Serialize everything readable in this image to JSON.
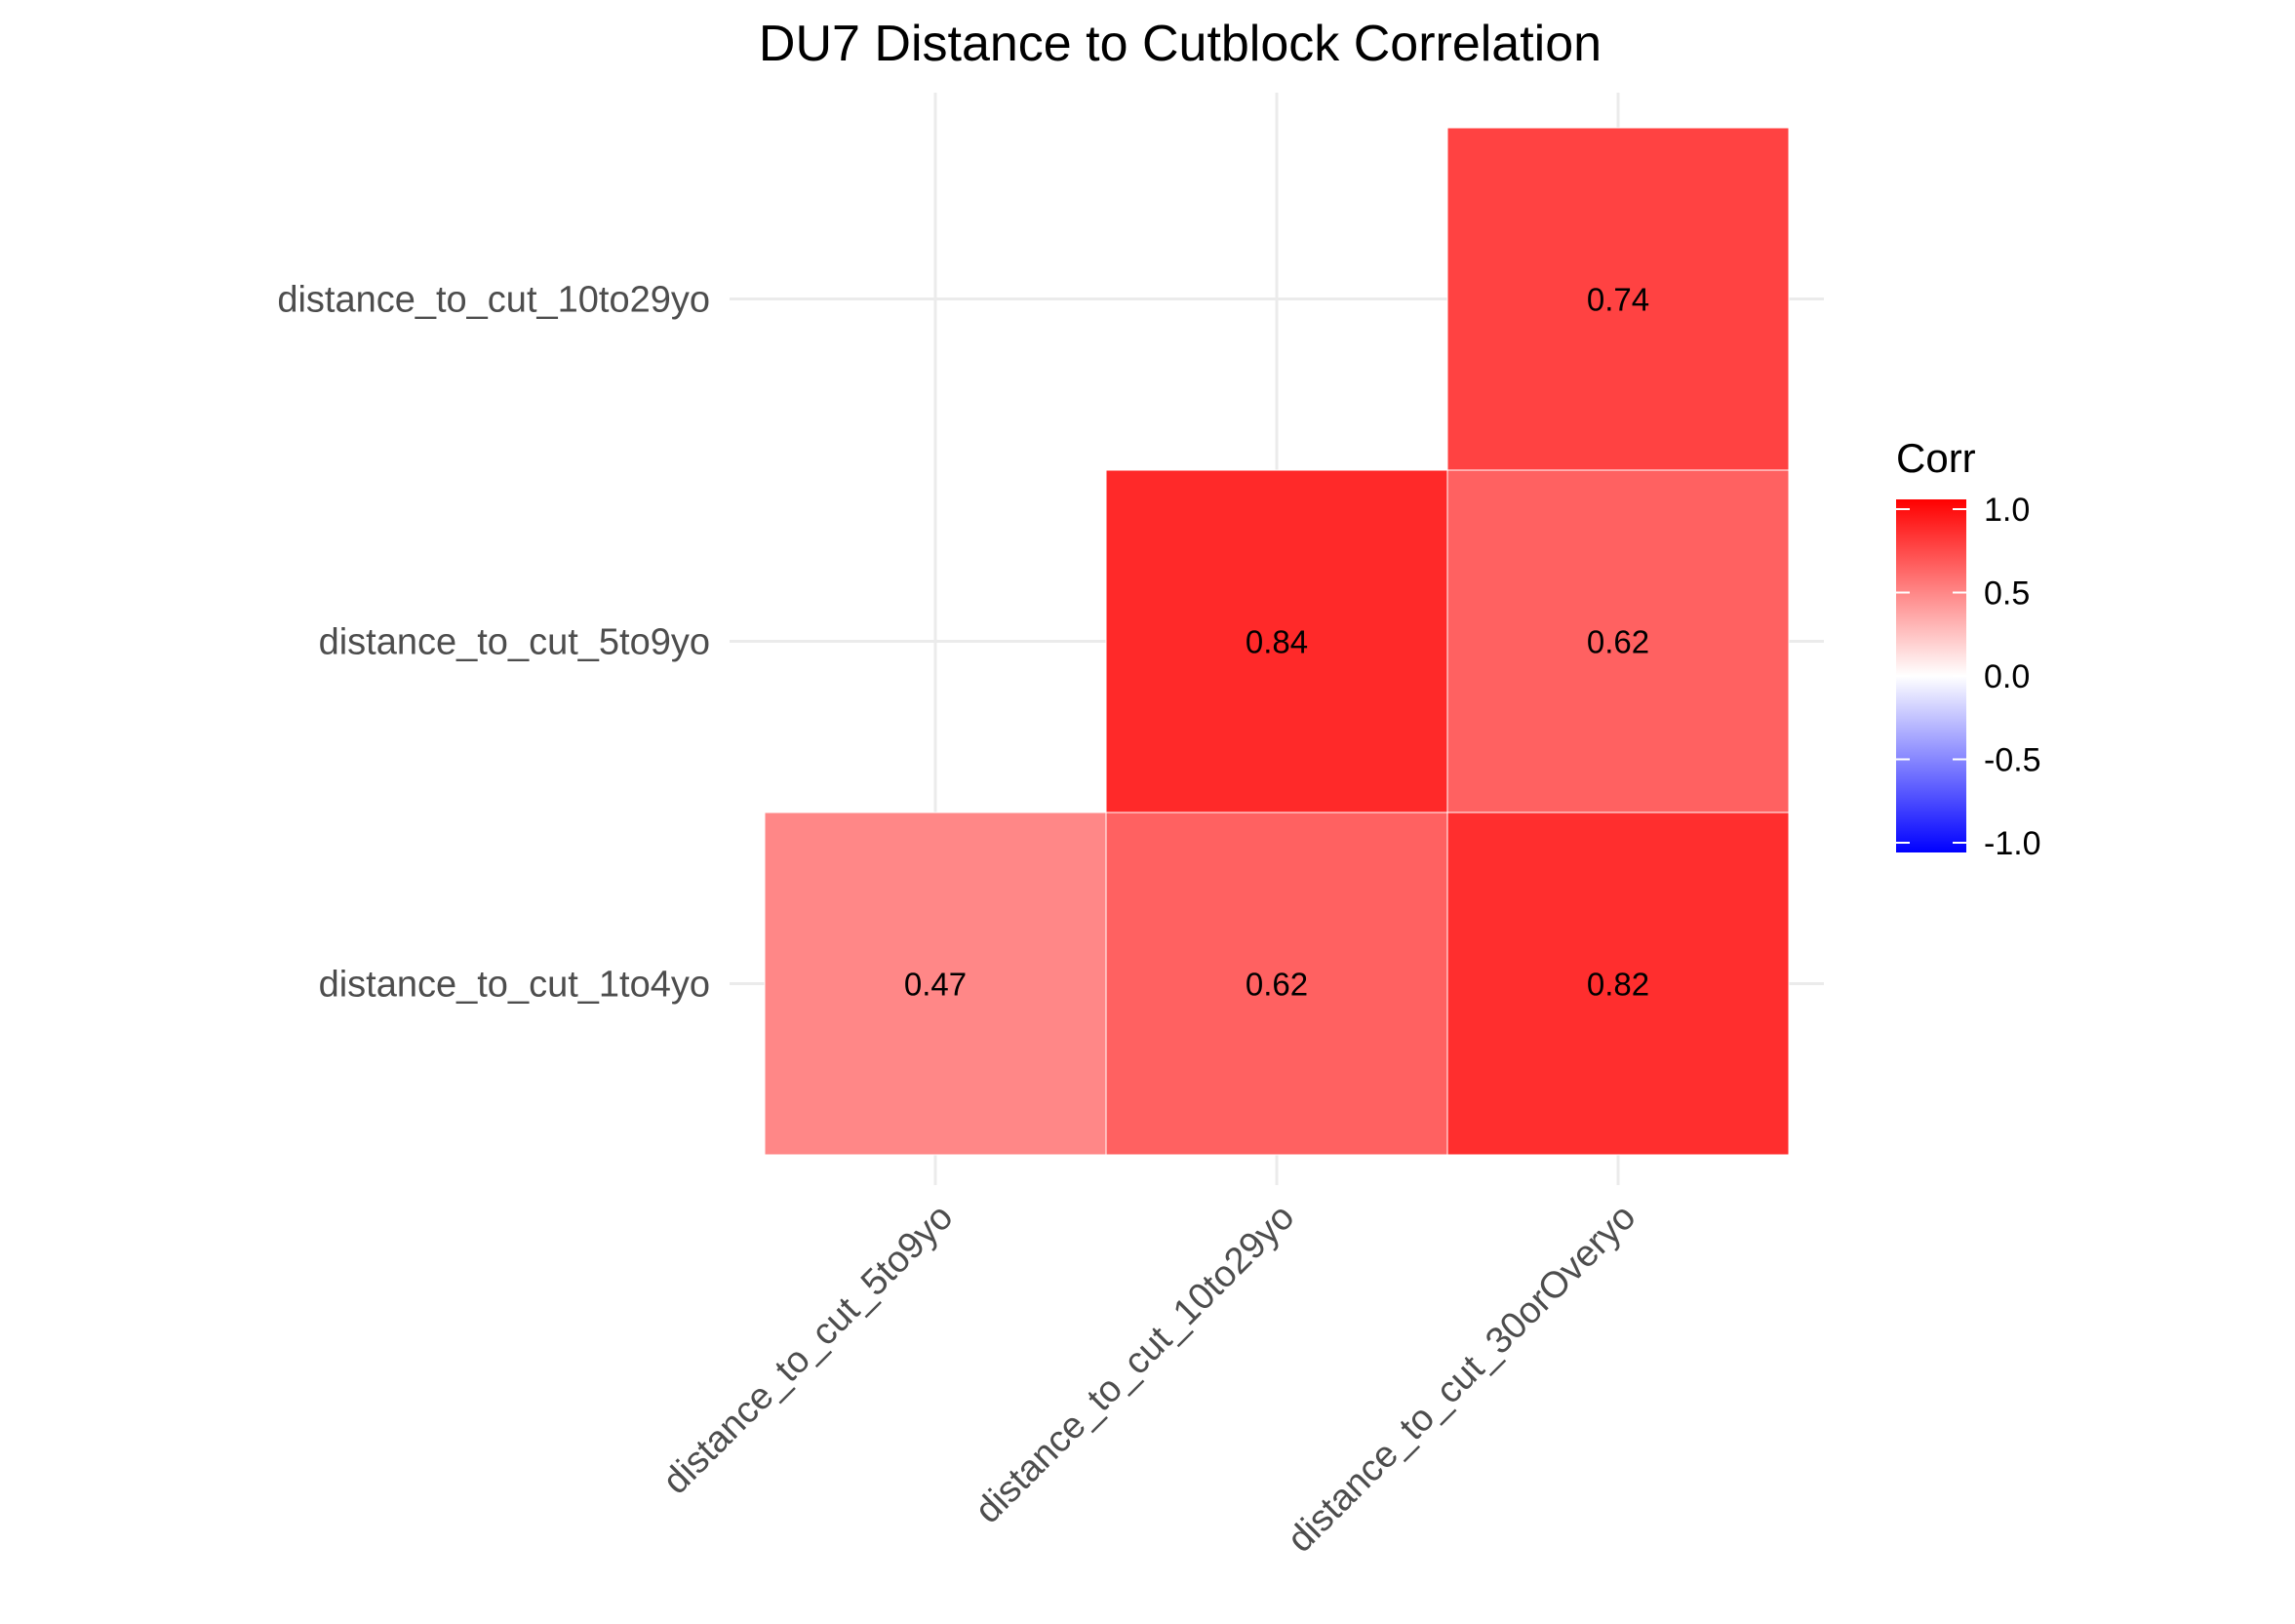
{
  "chart_data": {
    "type": "heatmap",
    "title": "DU7 Distance to Cutblock Correlation",
    "xlabel": "",
    "ylabel": "",
    "x_categories": [
      "distance_to_cut_5to9yo",
      "distance_to_cut_10to29yo",
      "distance_to_cut_30orOveryo"
    ],
    "y_categories": [
      "distance_to_cut_1to4yo",
      "distance_to_cut_5to9yo",
      "distance_to_cut_10to29yo"
    ],
    "cells": [
      {
        "x": "distance_to_cut_5to9yo",
        "y": "distance_to_cut_1to4yo",
        "value": 0.47,
        "label": "0.47"
      },
      {
        "x": "distance_to_cut_10to29yo",
        "y": "distance_to_cut_1to4yo",
        "value": 0.62,
        "label": "0.62"
      },
      {
        "x": "distance_to_cut_30orOveryo",
        "y": "distance_to_cut_1to4yo",
        "value": 0.82,
        "label": "0.82"
      },
      {
        "x": "distance_to_cut_10to29yo",
        "y": "distance_to_cut_5to9yo",
        "value": 0.84,
        "label": "0.84"
      },
      {
        "x": "distance_to_cut_30orOveryo",
        "y": "distance_to_cut_5to9yo",
        "value": 0.62,
        "label": "0.62"
      },
      {
        "x": "distance_to_cut_30orOveryo",
        "y": "distance_to_cut_10to29yo",
        "value": 0.74,
        "label": "0.74"
      }
    ],
    "color_scale": {
      "low": "#0000ff",
      "mid": "#ffffff",
      "high": "#ff0000",
      "limits": [
        -1,
        1
      ]
    },
    "legend": {
      "title": "Corr",
      "placement": "right",
      "ticks": [
        "1.0",
        "0.5",
        "0.0",
        "-0.5",
        "-1.0"
      ]
    },
    "grid": true
  }
}
